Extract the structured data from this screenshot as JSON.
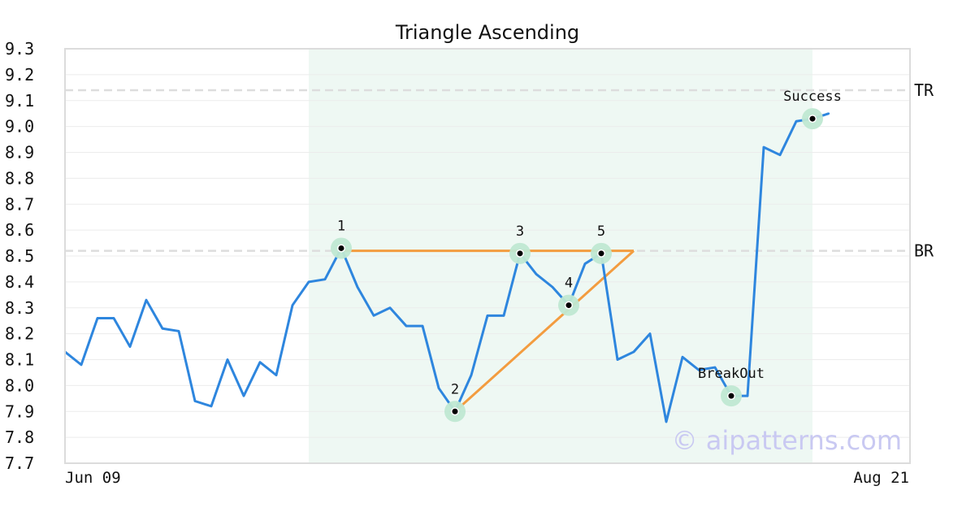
{
  "chart_data": {
    "type": "line",
    "title": "Triangle Ascending",
    "xlabel": "",
    "ylabel": "",
    "ylim": [
      7.7,
      9.3
    ],
    "y_ticks": [
      "9.3",
      "9.2",
      "9.1",
      "9.0",
      "8.9",
      "8.8",
      "8.7",
      "8.6",
      "8.5",
      "8.4",
      "8.3",
      "8.2",
      "8.1",
      "8.0",
      "7.9",
      "7.8",
      "7.7"
    ],
    "x_start_label": "Jun 09",
    "x_end_label": "Aug 21",
    "grid": true,
    "series": [
      {
        "color": "#2e86de",
        "values": [
          8.13,
          8.08,
          8.26,
          8.26,
          8.15,
          8.33,
          8.22,
          8.21,
          7.94,
          7.92,
          8.1,
          7.96,
          8.09,
          8.04,
          8.31,
          8.4,
          8.41,
          8.53,
          8.38,
          8.27,
          8.3,
          8.23,
          8.23,
          7.99,
          7.9,
          8.04,
          8.27,
          8.27,
          8.51,
          8.43,
          8.38,
          8.31,
          8.47,
          8.51,
          8.1,
          8.13,
          8.2,
          7.86,
          8.11,
          8.06,
          8.07,
          7.96,
          7.96,
          8.92,
          8.89,
          9.02,
          9.03,
          9.05
        ]
      }
    ],
    "pattern_window": [
      15,
      46
    ],
    "pattern_color": "#eef8f3",
    "triangle": {
      "color": "#f39c3f",
      "resistance": {
        "from": 17,
        "to": 35,
        "y": 8.52
      },
      "support": {
        "from": 24,
        "y_from": 7.9,
        "to": 35,
        "y_to": 8.52
      }
    },
    "levels": [
      {
        "label": "TR",
        "y": 9.14
      },
      {
        "label": "BR",
        "y": 8.52
      }
    ],
    "level_color": "#dddddd",
    "markers": [
      {
        "label": "1",
        "x": 17,
        "y": 8.53,
        "pos": "above"
      },
      {
        "label": "2",
        "x": 24,
        "y": 7.9,
        "pos": "above"
      },
      {
        "label": "3",
        "x": 28,
        "y": 8.51,
        "pos": "above"
      },
      {
        "label": "4",
        "x": 31,
        "y": 8.31,
        "pos": "above"
      },
      {
        "label": "5",
        "x": 33,
        "y": 8.51,
        "pos": "above"
      },
      {
        "label": "BreakOut",
        "x": 41,
        "y": 7.96,
        "pos": "above"
      },
      {
        "label": "Success",
        "x": 46,
        "y": 9.03,
        "pos": "above"
      }
    ],
    "marker_ring_color": "#bfe8d2"
  },
  "watermark": "© aipatterns.com"
}
